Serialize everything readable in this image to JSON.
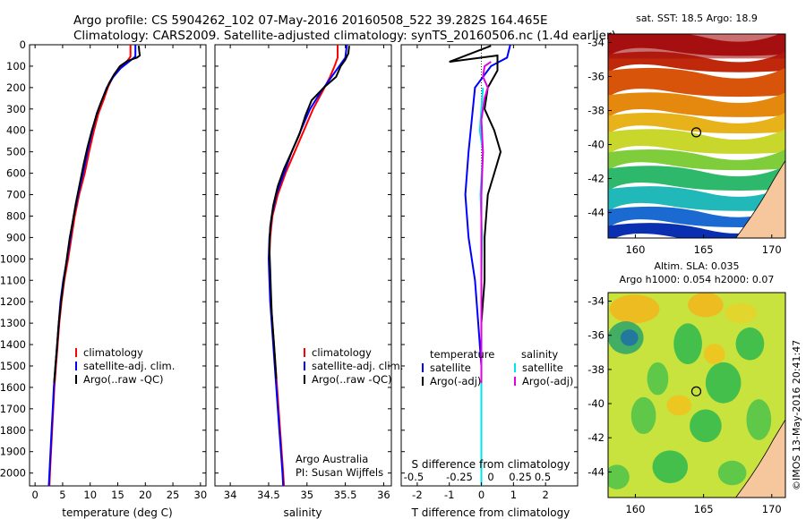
{
  "header": {
    "title_line1": "Argo profile: CS 5904262_102 07-May-2016 20160508_522 39.282S 164.465E",
    "title_line2": "Climatology: CARS2009. Satellite-adjusted climatology: synTS_20160506.nc (1.4d earlier)"
  },
  "chart_data": [
    {
      "type": "line",
      "name": "temperature profile",
      "xlabel": "temperature (deg C)",
      "ylabel": "",
      "xlim": [
        -1,
        31
      ],
      "ylim": [
        2060,
        0
      ],
      "xticks": [
        "0",
        "5",
        "10",
        "15",
        "20",
        "25",
        "30"
      ],
      "yticks": [
        "0",
        "100",
        "200",
        "300",
        "400",
        "500",
        "600",
        "700",
        "800",
        "900",
        "1000",
        "1100",
        "1200",
        "1300",
        "1400",
        "1500",
        "1600",
        "1700",
        "1800",
        "1900",
        "2000"
      ],
      "legend": [
        "climatology",
        "satellite-adj. clim.",
        "Argo(..raw -QC)"
      ],
      "legend_position": "lower-right",
      "series": [
        {
          "name": "climatology",
          "color": "#ff0000",
          "points": [
            [
              17.3,
              0
            ],
            [
              17.3,
              55
            ],
            [
              16.6,
              80
            ],
            [
              15.3,
              110
            ],
            [
              14.1,
              150
            ],
            [
              13.2,
              200
            ],
            [
              12.4,
              260
            ],
            [
              11.5,
              320
            ],
            [
              10.7,
              400
            ],
            [
              9.8,
              500
            ],
            [
              9.0,
              600
            ],
            [
              8.0,
              700
            ],
            [
              7.2,
              800
            ],
            [
              6.6,
              900
            ],
            [
              6.0,
              1000
            ],
            [
              5.3,
              1100
            ],
            [
              4.8,
              1200
            ],
            [
              4.4,
              1300
            ],
            [
              4.1,
              1400
            ],
            [
              3.8,
              1500
            ],
            [
              3.5,
              1600
            ],
            [
              3.3,
              1700
            ],
            [
              3.1,
              1800
            ],
            [
              2.9,
              1900
            ],
            [
              2.7,
              2000
            ],
            [
              2.6,
              2060
            ]
          ]
        },
        {
          "name": "satellite-adj. clim.",
          "color": "#0000ff",
          "points": [
            [
              18.2,
              0
            ],
            [
              18.2,
              55
            ],
            [
              17.0,
              80
            ],
            [
              15.5,
              110
            ],
            [
              14.2,
              150
            ],
            [
              13.0,
              200
            ],
            [
              12.1,
              260
            ],
            [
              11.2,
              320
            ],
            [
              10.4,
              400
            ],
            [
              9.5,
              500
            ],
            [
              8.7,
              600
            ],
            [
              7.8,
              700
            ],
            [
              7.0,
              800
            ],
            [
              6.4,
              900
            ],
            [
              5.8,
              1000
            ],
            [
              5.1,
              1100
            ],
            [
              4.6,
              1200
            ],
            [
              4.3,
              1300
            ],
            [
              4.0,
              1400
            ],
            [
              3.7,
              1500
            ],
            [
              3.4,
              1600
            ],
            [
              3.2,
              1700
            ],
            [
              3.0,
              1800
            ],
            [
              2.8,
              1900
            ],
            [
              2.6,
              2000
            ],
            [
              2.5,
              2060
            ]
          ]
        },
        {
          "name": "Argo(..raw -QC)",
          "color": "#000000",
          "points": [
            [
              18.8,
              5
            ],
            [
              18.9,
              30
            ],
            [
              19.0,
              50
            ],
            [
              18.5,
              60
            ],
            [
              16.8,
              75
            ],
            [
              15.4,
              100
            ],
            [
              14.3,
              140
            ],
            [
              13.4,
              180
            ],
            [
              12.6,
              230
            ],
            [
              11.8,
              280
            ],
            [
              11.0,
              340
            ],
            [
              10.3,
              400
            ],
            [
              9.5,
              480
            ],
            [
              8.8,
              560
            ],
            [
              8.1,
              650
            ],
            [
              7.4,
              740
            ],
            [
              6.8,
              830
            ],
            [
              6.3,
              900
            ],
            [
              5.8,
              990
            ],
            [
              5.2,
              1100
            ],
            [
              4.7,
              1200
            ],
            [
              4.3,
              1300
            ],
            [
              4.0,
              1400
            ],
            [
              3.7,
              1500
            ],
            [
              3.45,
              1580
            ]
          ]
        }
      ]
    },
    {
      "type": "line",
      "name": "salinity profile",
      "xlabel": "salinity",
      "ylabel": "",
      "xlim": [
        33.8,
        36.1
      ],
      "ylim": [
        2060,
        0
      ],
      "xticks": [
        "34",
        "34.5",
        "35",
        "35.5",
        "36"
      ],
      "legend": [
        "climatology",
        "satellite-adj. clim.",
        "Argo(..raw -QC)"
      ],
      "legend_position": "lower-right",
      "annotation": [
        "Argo Australia",
        "PI: Susan Wijffels"
      ],
      "series": [
        {
          "name": "climatology",
          "color": "#ff0000",
          "points": [
            [
              35.4,
              0
            ],
            [
              35.4,
              60
            ],
            [
              35.36,
              100
            ],
            [
              35.3,
              150
            ],
            [
              35.2,
              220
            ],
            [
              35.08,
              300
            ],
            [
              34.96,
              400
            ],
            [
              34.84,
              500
            ],
            [
              34.72,
              600
            ],
            [
              34.62,
              700
            ],
            [
              34.55,
              800
            ],
            [
              34.52,
              900
            ],
            [
              34.51,
              1000
            ],
            [
              34.52,
              1100
            ],
            [
              34.53,
              1200
            ],
            [
              34.55,
              1300
            ],
            [
              34.57,
              1400
            ],
            [
              34.59,
              1500
            ],
            [
              34.61,
              1600
            ],
            [
              34.63,
              1700
            ],
            [
              34.65,
              1800
            ],
            [
              34.67,
              1900
            ],
            [
              34.69,
              2000
            ],
            [
              34.7,
              2060
            ]
          ]
        },
        {
          "name": "satellite-adj. clim.",
          "color": "#0000ff",
          "points": [
            [
              35.52,
              0
            ],
            [
              35.5,
              60
            ],
            [
              35.42,
              100
            ],
            [
              35.32,
              150
            ],
            [
              35.18,
              220
            ],
            [
              35.04,
              300
            ],
            [
              34.92,
              400
            ],
            [
              34.8,
              500
            ],
            [
              34.7,
              600
            ],
            [
              34.6,
              700
            ],
            [
              34.54,
              800
            ],
            [
              34.51,
              900
            ],
            [
              34.5,
              1000
            ],
            [
              34.51,
              1100
            ],
            [
              34.52,
              1200
            ],
            [
              34.54,
              1300
            ],
            [
              34.56,
              1400
            ],
            [
              34.58,
              1500
            ],
            [
              34.6,
              1600
            ],
            [
              34.62,
              1700
            ],
            [
              34.64,
              1800
            ],
            [
              34.66,
              1900
            ],
            [
              34.68,
              2000
            ],
            [
              34.69,
              2060
            ]
          ]
        },
        {
          "name": "Argo(..raw -QC)",
          "color": "#000000",
          "points": [
            [
              35.55,
              5
            ],
            [
              35.54,
              40
            ],
            [
              35.5,
              70
            ],
            [
              35.44,
              100
            ],
            [
              35.38,
              150
            ],
            [
              35.22,
              200
            ],
            [
              35.06,
              260
            ],
            [
              34.98,
              330
            ],
            [
              34.9,
              420
            ],
            [
              34.8,
              500
            ],
            [
              34.7,
              580
            ],
            [
              34.62,
              660
            ],
            [
              34.56,
              750
            ],
            [
              34.52,
              850
            ],
            [
              34.51,
              950
            ],
            [
              34.52,
              1050
            ],
            [
              34.53,
              1150
            ],
            [
              34.54,
              1250
            ],
            [
              34.56,
              1350
            ],
            [
              34.58,
              1450
            ],
            [
              34.6,
              1560
            ]
          ]
        }
      ]
    },
    {
      "type": "line",
      "name": "difference from climatology",
      "xlabel": "T difference from climatology",
      "xlabel_top": "S difference from climatology",
      "xlim": [
        -2.5,
        3
      ],
      "ylim": [
        2060,
        0
      ],
      "xticks": [
        "-2",
        "-1",
        "0",
        "1",
        "2"
      ],
      "xticks_top": [
        "-0.5",
        "-0.25",
        "0",
        "0.25",
        "0.5"
      ],
      "legend": [
        "temperature",
        "satellite",
        "Argo(-adj)",
        "salinity",
        "satellite",
        "Argo(-adj)"
      ],
      "legend_position": "lower-center",
      "series": [
        {
          "name": "temperature satellite",
          "color": "#0000ff",
          "points": [
            [
              0.9,
              0
            ],
            [
              0.8,
              60
            ],
            [
              0.3,
              100
            ],
            [
              -0.2,
              200
            ],
            [
              -0.3,
              350
            ],
            [
              -0.4,
              500
            ],
            [
              -0.5,
              700
            ],
            [
              -0.4,
              900
            ],
            [
              -0.2,
              1100
            ],
            [
              -0.1,
              1300
            ],
            [
              0.0,
              1500
            ],
            [
              0.0,
              2060
            ]
          ]
        },
        {
          "name": "temperature Argo(-adj)",
          "color": "#000000",
          "points": [
            [
              0.3,
              5
            ],
            [
              -1.0,
              80
            ],
            [
              0.5,
              50
            ],
            [
              0.5,
              120
            ],
            [
              0.2,
              200
            ],
            [
              0.1,
              300
            ],
            [
              0.4,
              400
            ],
            [
              0.6,
              500
            ],
            [
              0.4,
              600
            ],
            [
              0.2,
              700
            ],
            [
              0.1,
              900
            ],
            [
              0.1,
              1100
            ],
            [
              0.0,
              1300
            ],
            [
              0.0,
              1580
            ]
          ]
        },
        {
          "name": "salinity satellite",
          "color": "#00e5e5",
          "points": [
            [
              0.05,
              200
            ],
            [
              0.0,
              300
            ],
            [
              -0.05,
              400
            ],
            [
              0.05,
              500
            ],
            [
              -0.03,
              700
            ],
            [
              0.02,
              900
            ],
            [
              0.0,
              1100
            ],
            [
              0.0,
              2060
            ]
          ]
        },
        {
          "name": "salinity Argo(-adj)",
          "color": "#e000e0",
          "points": [
            [
              0.3,
              80
            ],
            [
              0.1,
              100
            ],
            [
              0.05,
              150
            ],
            [
              0.2,
              200
            ],
            [
              0.1,
              250
            ],
            [
              0.0,
              350
            ],
            [
              0.05,
              500
            ],
            [
              0.0,
              700
            ],
            [
              0.0,
              1580
            ]
          ]
        }
      ]
    },
    {
      "type": "heatmap",
      "name": "sat. SST",
      "title": "sat. SST: 18.5  Argo: 18.9",
      "xticks": [
        "160",
        "165",
        "170"
      ],
      "yticks": [
        "-34",
        "-36",
        "-38",
        "-40",
        "-42",
        "-44"
      ]
    },
    {
      "type": "heatmap",
      "name": "Altim. SLA",
      "title_line1": "Altim. SLA: 0.035",
      "title_line2": "Argo h1000: 0.054  h2000: 0.07",
      "xticks": [
        "160",
        "165",
        "170"
      ],
      "yticks": [
        "-34",
        "-36",
        "-38",
        "-40",
        "-42",
        "-44"
      ]
    }
  ],
  "footer": {
    "credit": "©IMOS 13-May-2016 20:41:47"
  },
  "colors": {
    "climatology": "#ff0000",
    "satellite": "#0000ff",
    "argo": "#000000",
    "salinity_satellite": "#00e5e5",
    "salinity_argo": "#e000e0"
  }
}
